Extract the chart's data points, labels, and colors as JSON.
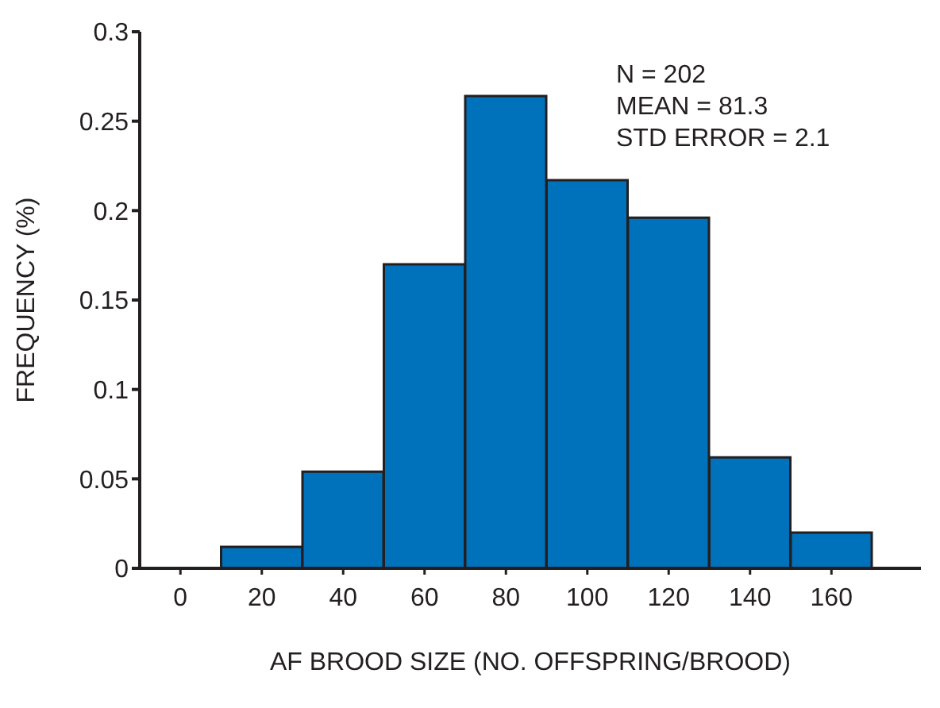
{
  "chart_data": {
    "type": "histogram",
    "xlabel": "AF BROOD SIZE (NO. OFFSPRING/BROOD)",
    "ylabel": "FREQUENCY (%)",
    "bins": [
      10,
      30,
      50,
      70,
      90,
      110,
      130,
      150,
      170
    ],
    "values": [
      0.012,
      0.054,
      0.17,
      0.264,
      0.217,
      0.196,
      0.062,
      0.02
    ],
    "color": "#0072bc",
    "xlim": [
      -10,
      182
    ],
    "xticks": [
      0,
      20,
      40,
      60,
      80,
      100,
      120,
      140,
      160
    ],
    "ylim": [
      0,
      0.3
    ],
    "yticks": [
      0,
      0.05,
      0.1,
      0.15,
      0.2,
      0.25,
      0.3
    ],
    "annotations": [
      "N = 202",
      "MEAN = 81.3",
      "STD ERROR = 2.1"
    ],
    "grid": false,
    "legend": false
  }
}
